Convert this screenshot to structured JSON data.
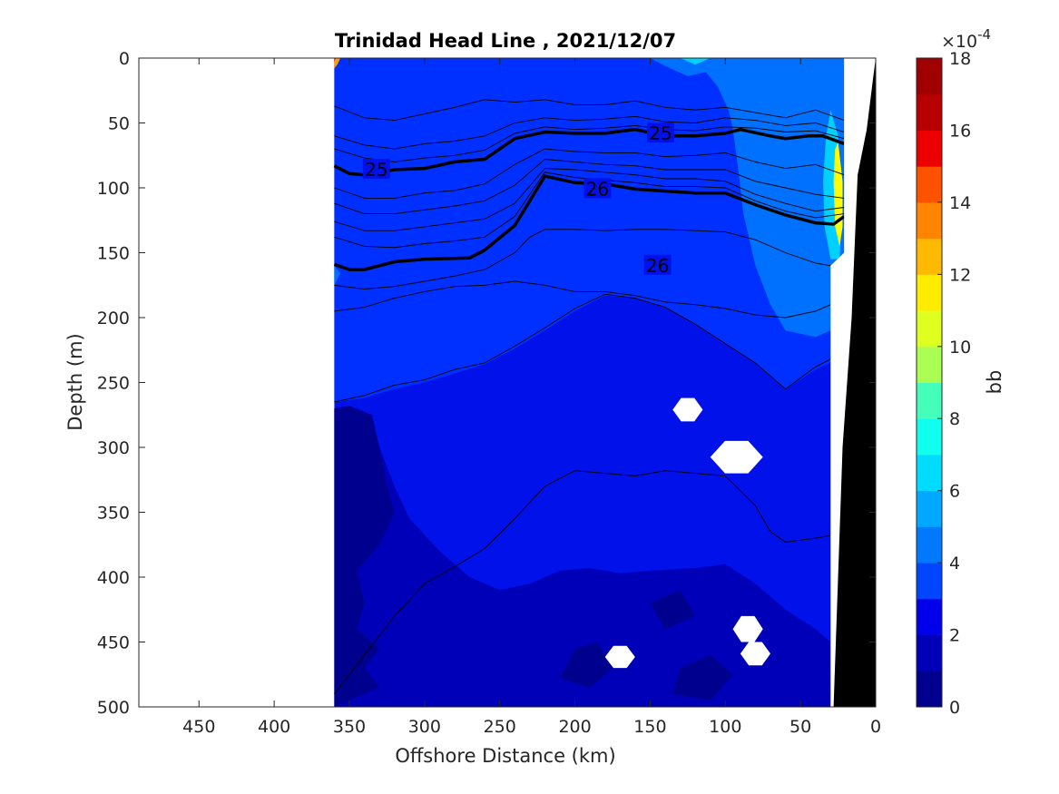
{
  "chart_data": {
    "type": "heatmap",
    "title": "Trinidad Head Line , 2021/12/07",
    "xlabel": "Offshore Distance (km)",
    "ylabel": "Depth (m)",
    "xlim": [
      490,
      0
    ],
    "ylim": [
      0,
      500
    ],
    "x_reversed": true,
    "y_reversed": true,
    "x_ticks": [
      450,
      400,
      350,
      300,
      250,
      200,
      150,
      100,
      50,
      0
    ],
    "y_ticks": [
      0,
      50,
      100,
      150,
      200,
      250,
      300,
      350,
      400,
      450,
      500
    ],
    "data_extent_x": [
      360,
      21
    ],
    "colorbar": {
      "label": "bb",
      "exponent_label": "×10",
      "exponent": "-4",
      "range": [
        0,
        18
      ],
      "ticks": [
        0,
        2,
        4,
        6,
        8,
        10,
        12,
        14,
        16,
        18
      ],
      "levels": 18,
      "colormap": "jet"
    },
    "contour_labels": [
      {
        "text": "25",
        "x": 332,
        "depth": 86
      },
      {
        "text": "25",
        "x": 143,
        "depth": 58
      },
      {
        "text": "26",
        "x": 145,
        "depth": 160
      },
      {
        "text": "26",
        "x": 185,
        "depth": 101
      }
    ],
    "isopycnals_bold": [
      {
        "value": "25",
        "points": [
          [
            360,
            83
          ],
          [
            350,
            89
          ],
          [
            340,
            90
          ],
          [
            320,
            86
          ],
          [
            300,
            85
          ],
          [
            280,
            80
          ],
          [
            260,
            78
          ],
          [
            240,
            62
          ],
          [
            220,
            57
          ],
          [
            200,
            58
          ],
          [
            180,
            58
          ],
          [
            160,
            55
          ],
          [
            140,
            60
          ],
          [
            120,
            60
          ],
          [
            100,
            58
          ],
          [
            90,
            55
          ],
          [
            70,
            60
          ],
          [
            60,
            62
          ],
          [
            45,
            60
          ],
          [
            35,
            60
          ],
          [
            21,
            66
          ]
        ]
      },
      {
        "value": "26",
        "points": [
          [
            360,
            159
          ],
          [
            350,
            163
          ],
          [
            340,
            163
          ],
          [
            320,
            157
          ],
          [
            300,
            155
          ],
          [
            270,
            154
          ],
          [
            260,
            148
          ],
          [
            240,
            129
          ],
          [
            220,
            91
          ],
          [
            200,
            96
          ],
          [
            180,
            97
          ],
          [
            160,
            101
          ],
          [
            120,
            104
          ],
          [
            100,
            104
          ],
          [
            80,
            113
          ],
          [
            60,
            121
          ],
          [
            40,
            127
          ],
          [
            28,
            128
          ],
          [
            21,
            122
          ]
        ]
      }
    ],
    "isopycnals_thin": [
      [
        [
          360,
          37
        ],
        [
          340,
          46
        ],
        [
          320,
          48
        ],
        [
          300,
          43
        ],
        [
          280,
          38
        ],
        [
          260,
          32
        ],
        [
          240,
          34
        ],
        [
          220,
          32
        ],
        [
          200,
          36
        ],
        [
          180,
          36
        ],
        [
          160,
          33
        ],
        [
          140,
          38
        ],
        [
          120,
          40
        ],
        [
          100,
          38
        ],
        [
          80,
          42
        ],
        [
          60,
          46
        ],
        [
          40,
          40
        ],
        [
          21,
          48
        ]
      ],
      [
        [
          360,
          60
        ],
        [
          340,
          67
        ],
        [
          320,
          70
        ],
        [
          300,
          66
        ],
        [
          280,
          64
        ],
        [
          260,
          60
        ],
        [
          240,
          50
        ],
        [
          220,
          46
        ],
        [
          200,
          48
        ],
        [
          180,
          47
        ],
        [
          160,
          45
        ],
        [
          140,
          49
        ],
        [
          120,
          50
        ],
        [
          100,
          46
        ],
        [
          80,
          48
        ],
        [
          60,
          52
        ],
        [
          40,
          50
        ],
        [
          21,
          57
        ]
      ],
      [
        [
          360,
          70
        ],
        [
          340,
          77
        ],
        [
          320,
          80
        ],
        [
          300,
          77
        ],
        [
          280,
          75
        ],
        [
          260,
          71
        ],
        [
          240,
          58
        ],
        [
          220,
          53
        ],
        [
          200,
          55
        ],
        [
          180,
          54
        ],
        [
          160,
          52
        ],
        [
          140,
          55
        ],
        [
          120,
          56
        ],
        [
          100,
          53
        ],
        [
          80,
          54
        ],
        [
          60,
          57
        ],
        [
          40,
          56
        ],
        [
          21,
          62
        ]
      ],
      [
        [
          360,
          100
        ],
        [
          340,
          108
        ],
        [
          320,
          108
        ],
        [
          300,
          104
        ],
        [
          280,
          102
        ],
        [
          260,
          97
        ],
        [
          240,
          82
        ],
        [
          220,
          70
        ],
        [
          200,
          72
        ],
        [
          180,
          73
        ],
        [
          160,
          73
        ],
        [
          140,
          76
        ],
        [
          120,
          75
        ],
        [
          100,
          73
        ],
        [
          80,
          80
        ],
        [
          60,
          85
        ],
        [
          40,
          82
        ],
        [
          21,
          90
        ]
      ],
      [
        [
          360,
          112
        ],
        [
          340,
          120
        ],
        [
          320,
          120
        ],
        [
          300,
          117
        ],
        [
          280,
          114
        ],
        [
          260,
          110
        ],
        [
          240,
          98
        ],
        [
          220,
          78
        ],
        [
          200,
          80
        ],
        [
          180,
          82
        ],
        [
          160,
          83
        ],
        [
          140,
          86
        ],
        [
          120,
          86
        ],
        [
          100,
          86
        ],
        [
          80,
          95
        ],
        [
          60,
          100
        ],
        [
          40,
          105
        ],
        [
          21,
          108
        ]
      ],
      [
        [
          360,
          126
        ],
        [
          340,
          133
        ],
        [
          320,
          133
        ],
        [
          300,
          130
        ],
        [
          280,
          127
        ],
        [
          260,
          124
        ],
        [
          240,
          112
        ],
        [
          220,
          85
        ],
        [
          200,
          86
        ],
        [
          180,
          88
        ],
        [
          160,
          90
        ],
        [
          140,
          93
        ],
        [
          120,
          93
        ],
        [
          100,
          95
        ],
        [
          80,
          105
        ],
        [
          60,
          112
        ],
        [
          40,
          118
        ],
        [
          21,
          115
        ]
      ],
      [
        [
          360,
          138
        ],
        [
          340,
          145
        ],
        [
          320,
          146
        ],
        [
          300,
          143
        ],
        [
          280,
          141
        ],
        [
          260,
          138
        ],
        [
          240,
          122
        ],
        [
          220,
          88
        ],
        [
          200,
          92
        ],
        [
          180,
          94
        ],
        [
          160,
          96
        ],
        [
          140,
          99
        ],
        [
          120,
          99
        ],
        [
          100,
          100
        ],
        [
          80,
          110
        ],
        [
          60,
          118
        ],
        [
          40,
          123
        ],
        [
          21,
          120
        ]
      ],
      [
        [
          360,
          175
        ],
        [
          340,
          178
        ],
        [
          320,
          176
        ],
        [
          300,
          172
        ],
        [
          280,
          168
        ],
        [
          260,
          163
        ],
        [
          240,
          150
        ],
        [
          230,
          138
        ],
        [
          220,
          132
        ],
        [
          200,
          132
        ],
        [
          180,
          133
        ],
        [
          160,
          132
        ],
        [
          140,
          132
        ],
        [
          120,
          133
        ],
        [
          100,
          134
        ],
        [
          80,
          140
        ],
        [
          60,
          150
        ],
        [
          40,
          158
        ],
        [
          30,
          160
        ]
      ],
      [
        [
          360,
          195
        ],
        [
          340,
          192
        ],
        [
          320,
          185
        ],
        [
          300,
          180
        ],
        [
          280,
          176
        ],
        [
          260,
          175
        ],
        [
          240,
          172
        ],
        [
          220,
          175
        ],
        [
          200,
          180
        ],
        [
          180,
          180
        ],
        [
          160,
          183
        ],
        [
          140,
          188
        ],
        [
          120,
          190
        ],
        [
          100,
          193
        ],
        [
          80,
          198
        ],
        [
          60,
          200
        ],
        [
          40,
          195
        ],
        [
          30,
          190
        ]
      ],
      [
        [
          360,
          265
        ],
        [
          340,
          260
        ],
        [
          320,
          252
        ],
        [
          300,
          248
        ],
        [
          280,
          240
        ],
        [
          260,
          235
        ],
        [
          240,
          222
        ],
        [
          220,
          208
        ],
        [
          200,
          193
        ],
        [
          180,
          182
        ],
        [
          160,
          185
        ],
        [
          140,
          192
        ],
        [
          120,
          205
        ],
        [
          100,
          220
        ],
        [
          80,
          235
        ],
        [
          70,
          245
        ],
        [
          60,
          255
        ],
        [
          40,
          238
        ],
        [
          30,
          232
        ]
      ],
      [
        [
          360,
          490
        ],
        [
          340,
          460
        ],
        [
          320,
          430
        ],
        [
          300,
          405
        ],
        [
          280,
          392
        ],
        [
          260,
          378
        ],
        [
          240,
          355
        ],
        [
          220,
          330
        ],
        [
          200,
          318
        ],
        [
          180,
          320
        ],
        [
          160,
          322
        ],
        [
          140,
          318
        ],
        [
          120,
          320
        ],
        [
          100,
          322
        ],
        [
          80,
          345
        ],
        [
          70,
          365
        ],
        [
          60,
          373
        ],
        [
          40,
          370
        ],
        [
          30,
          368
        ]
      ]
    ],
    "masked_regions": [
      {
        "x": [
          125,
          135,
          115
        ],
        "depth": [
          262,
          270,
          280
        ]
      },
      {
        "x": [
          90,
          110,
          75
        ],
        "depth": [
          295,
          310,
          320
        ]
      },
      {
        "x": [
          84,
          95,
          75
        ],
        "depth": [
          430,
          440,
          450
        ]
      },
      {
        "x": [
          170,
          180,
          160
        ],
        "depth": [
          453,
          460,
          470
        ]
      },
      {
        "x": [
          79,
          90,
          70
        ],
        "depth": [
          450,
          460,
          468
        ]
      }
    ],
    "colors": {
      "deep_navy": "#00008f",
      "dark_blue": "#0000b8",
      "mid_blue": "#0011ea",
      "blue": "#0030ff",
      "light_blue": "#0070ff",
      "cyan": "#00d0ff",
      "yellow": "#ffff00",
      "orange": "#ffa000",
      "red": "#ff1000",
      "land": "#000000"
    }
  }
}
